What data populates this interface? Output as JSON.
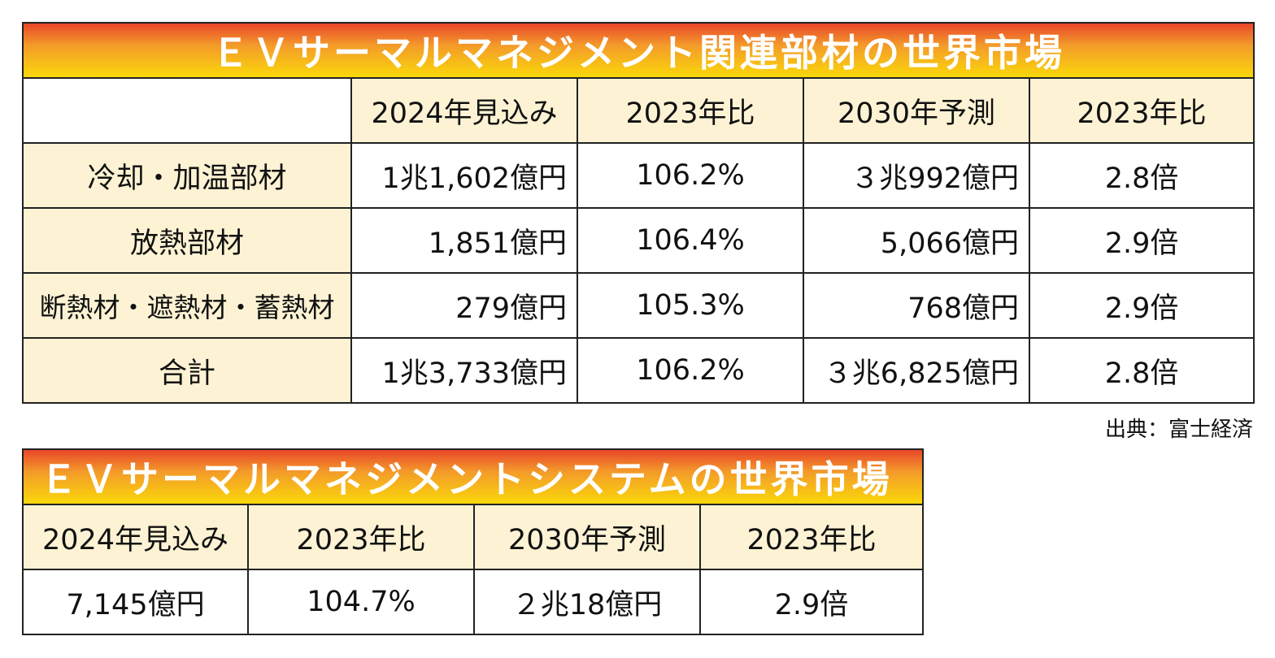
{
  "table1": {
    "title": "ＥＶサーマルマネジメント関連部材の世界市場",
    "headers": [
      "",
      "2024年見込み",
      "2023年比",
      "2030年予測",
      "2023年比"
    ],
    "rows": [
      [
        "冷却・加温部材",
        "1兆1,602億円",
        "106.2%",
        "３兆992億円",
        "2.8倍"
      ],
      [
        "放熱部材",
        "1,851億円",
        "106.4%",
        "5,066億円",
        "2.9倍"
      ],
      [
        "断熱材・遮熱材・蓄熱材",
        "279億円",
        "105.3%",
        "768億円",
        "2.9倍"
      ],
      [
        "合計",
        "1兆3,733億円",
        "106.2%",
        "３兆6,825億円",
        "2.8倍"
      ]
    ]
  },
  "source": "出典：富士経済",
  "table2": {
    "title": "ＥＶサーマルマネジメントシステムの世界市場",
    "headers": [
      "2024年見込み",
      "2023年比",
      "2030年予測",
      "2023年比"
    ],
    "row": [
      "7,145億円",
      "104.7%",
      "２兆18億円",
      "2.9倍"
    ]
  }
}
